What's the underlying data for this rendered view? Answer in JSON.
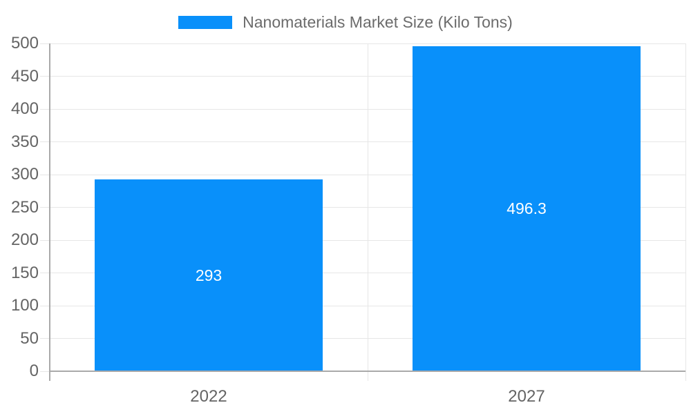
{
  "legend": {
    "label": "Nanomaterials Market Size (Kilo Tons)"
  },
  "chart_data": {
    "type": "bar",
    "title": "Nanomaterials Market Size (Kilo Tons)",
    "categories": [
      "2022",
      "2027"
    ],
    "series": [
      {
        "name": "Nanomaterials Market Size (Kilo Tons)",
        "values": [
          293,
          496.3
        ]
      }
    ],
    "values": [
      293,
      496.3
    ],
    "value_labels": [
      "293",
      "496.3"
    ],
    "xlabel": "",
    "ylabel": "",
    "ylim": [
      0,
      500
    ],
    "ytick_step": 50,
    "yticks": [
      "0",
      "50",
      "100",
      "150",
      "200",
      "250",
      "300",
      "350",
      "400",
      "450",
      "500"
    ],
    "grid": "on",
    "legend_position": "top-center",
    "bar_color": "#0990fa"
  },
  "colors": {
    "bar": "#0990fa",
    "grid": "#e6e6e6",
    "axis": "#a9a9a9",
    "axis_text": "#646464",
    "legend_text": "#6b6b6b",
    "value_text": "#ffffff",
    "background": "#ffffff"
  }
}
